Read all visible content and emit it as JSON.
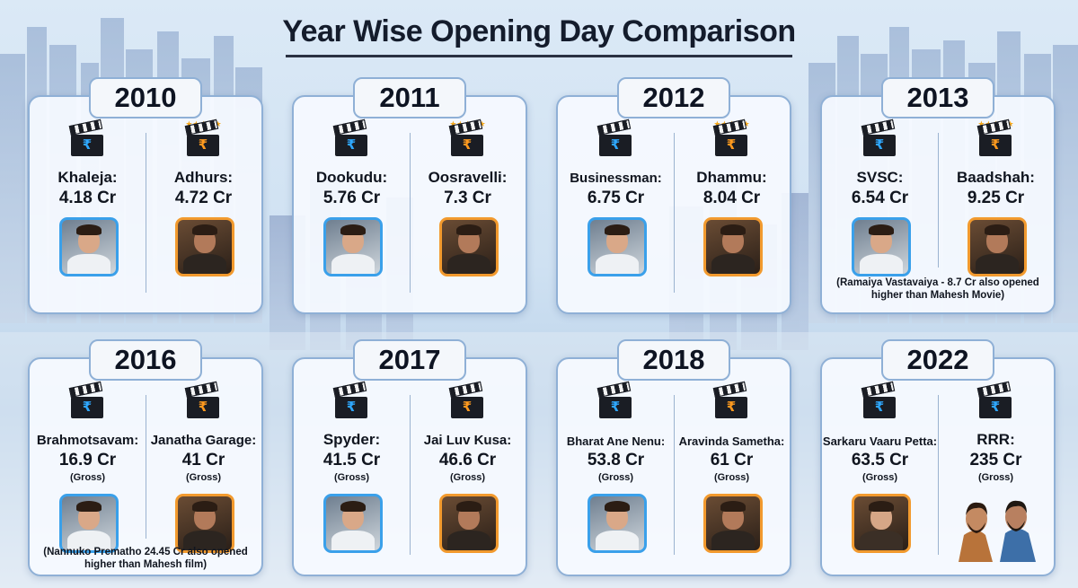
{
  "title": "Year Wise Opening Day Comparison",
  "colors": {
    "left_accent": "#3aa0ea",
    "right_accent": "#f29a2e",
    "card_border": "#8fb0d6",
    "stars": "#f4a81d"
  },
  "icons": {
    "clapperboard": "clapperboard-rupee-icon",
    "stars": "five-stars-icon"
  },
  "cards": [
    {
      "year": "2010",
      "left": {
        "name": "Khaleja:",
        "value": "4.18 Cr",
        "gross": ""
      },
      "right": {
        "name": "Adhurs:",
        "value": "4.72 Cr",
        "gross": "",
        "stars": "★★★★★"
      },
      "note": ""
    },
    {
      "year": "2011",
      "left": {
        "name": "Dookudu:",
        "value": "5.76 Cr",
        "gross": ""
      },
      "right": {
        "name": "Oosravelli:",
        "value": "7.3 Cr",
        "gross": "",
        "stars": "★★★★★"
      },
      "note": ""
    },
    {
      "year": "2012",
      "left": {
        "name": "Businessman:",
        "value": "6.75 Cr",
        "gross": ""
      },
      "right": {
        "name": "Dhammu:",
        "value": "8.04 Cr",
        "gross": "",
        "stars": "★★★★★"
      },
      "note": ""
    },
    {
      "year": "2013",
      "left": {
        "name": "SVSC:",
        "value": "6.54 Cr",
        "gross": ""
      },
      "right": {
        "name": "Baadshah:",
        "value": "9.25 Cr",
        "gross": "",
        "stars": "★★★★★"
      },
      "note": "(Ramaiya Vastavaiya - 8.7 Cr also opened higher than Mahesh Movie)"
    },
    {
      "year": "2016",
      "left": {
        "name": "Brahmotsavam:",
        "value": "16.9 Cr",
        "gross": "(Gross)"
      },
      "right": {
        "name": "Janatha Garage:",
        "value": "41 Cr",
        "gross": "(Gross)"
      },
      "note": "(Nannuko Prematho 24.45 Cr also opened higher than Mahesh film)"
    },
    {
      "year": "2017",
      "left": {
        "name": "Spyder:",
        "value": "41.5 Cr",
        "gross": "(Gross)"
      },
      "right": {
        "name": "Jai Luv Kusa:",
        "value": "46.6 Cr",
        "gross": "(Gross)"
      },
      "note": ""
    },
    {
      "year": "2018",
      "left": {
        "name": "Bharat Ane Nenu:",
        "value": "53.8 Cr",
        "gross": "(Gross)"
      },
      "right": {
        "name": "Aravinda Sametha:",
        "value": "61 Cr",
        "gross": "(Gross)"
      },
      "note": ""
    },
    {
      "year": "2022",
      "left": {
        "name": "Sarkaru Vaaru Petta:",
        "value": "63.5 Cr",
        "gross": "(Gross)"
      },
      "right": {
        "name": "RRR:",
        "value": "235 Cr",
        "gross": "(Gross)"
      },
      "note": ""
    }
  ]
}
